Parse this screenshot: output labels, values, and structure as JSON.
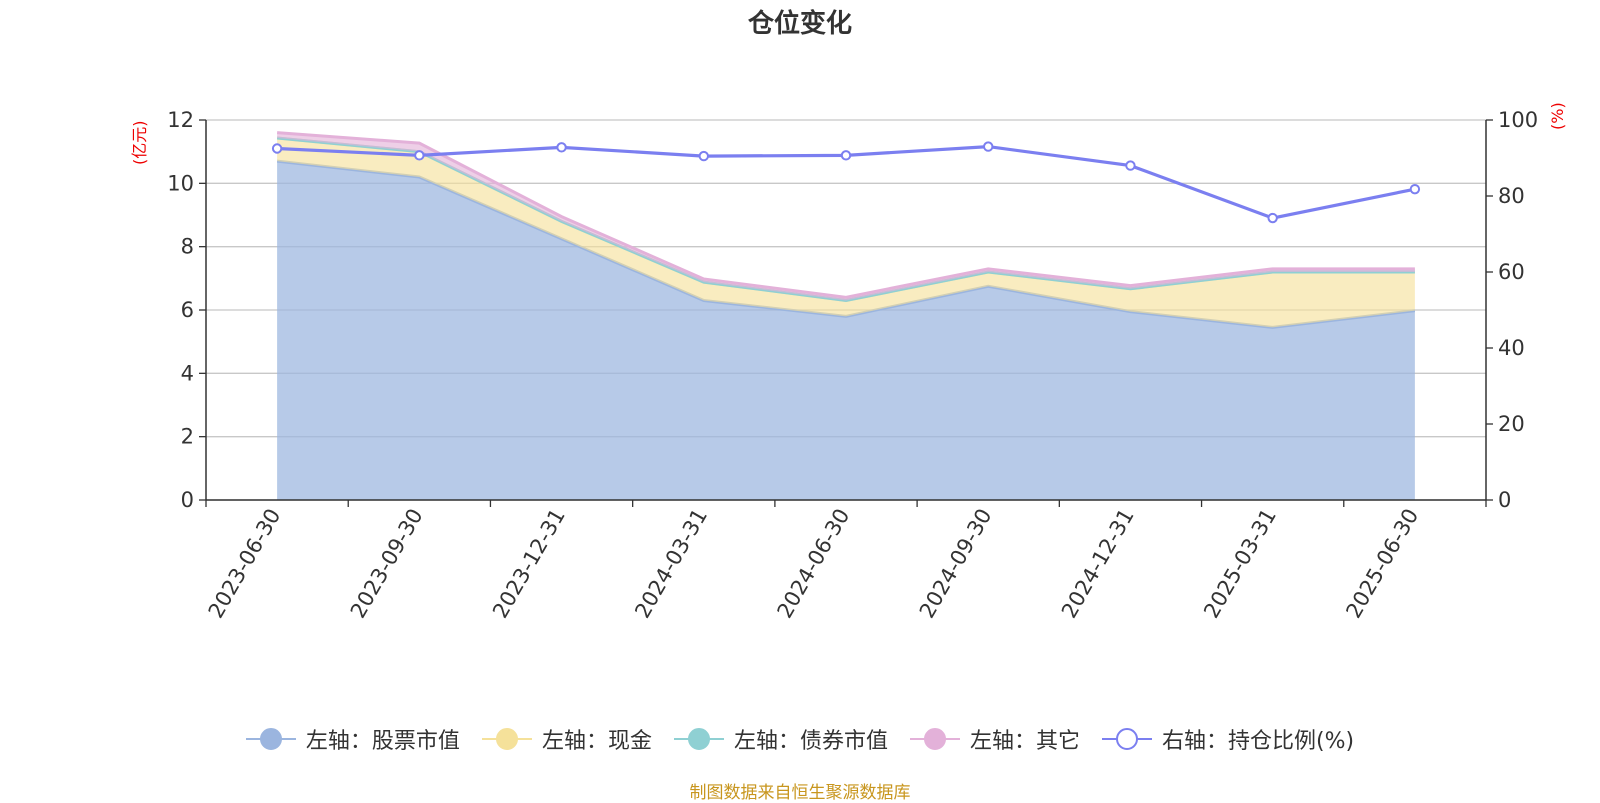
{
  "chart_data": {
    "type": "area",
    "title": "仓位变化",
    "x": [
      "2023-06-30",
      "2023-09-30",
      "2023-12-31",
      "2024-03-31",
      "2024-06-30",
      "2024-09-30",
      "2024-12-31",
      "2025-03-31",
      "2025-06-30"
    ],
    "left_axis": {
      "unit_label": "(亿元)",
      "range": [
        0,
        12
      ],
      "ticks": [
        "0",
        "2",
        "4",
        "6",
        "8",
        "10",
        "12"
      ]
    },
    "right_axis": {
      "unit_label": "(%)",
      "range": [
        0,
        100
      ],
      "ticks": [
        "0",
        "20",
        "40",
        "60",
        "80",
        "100"
      ]
    },
    "stacked_series": [
      {
        "name": "左轴：股票市值",
        "color": "#9bb5df",
        "values": [
          10.7,
          10.2,
          8.25,
          6.3,
          5.8,
          6.75,
          5.95,
          5.45,
          5.98
        ]
      },
      {
        "name": "左轴：现金",
        "color": "#f5e19a",
        "values": [
          0.73,
          0.8,
          0.55,
          0.58,
          0.5,
          0.45,
          0.72,
          1.75,
          1.22
        ]
      },
      {
        "name": "左轴：债券市值",
        "color": "#8fd0d3",
        "values": [
          0,
          0,
          0,
          0,
          0,
          0,
          0,
          0,
          0
        ]
      },
      {
        "name": "左轴：其它",
        "color": "#e3b1d9",
        "values": [
          0.17,
          0.27,
          0.15,
          0.1,
          0.1,
          0.1,
          0.1,
          0.1,
          0.1
        ]
      }
    ],
    "line_series": {
      "name": "右轴：持仓比例(%)",
      "color": "#7b7ff0",
      "values": [
        92.5,
        90.7,
        92.8,
        90.5,
        90.7,
        93.0,
        88.0,
        74.2,
        81.8
      ]
    },
    "grid": true,
    "legend_position": "bottom"
  },
  "source": "制图数据来自恒生聚源数据库"
}
